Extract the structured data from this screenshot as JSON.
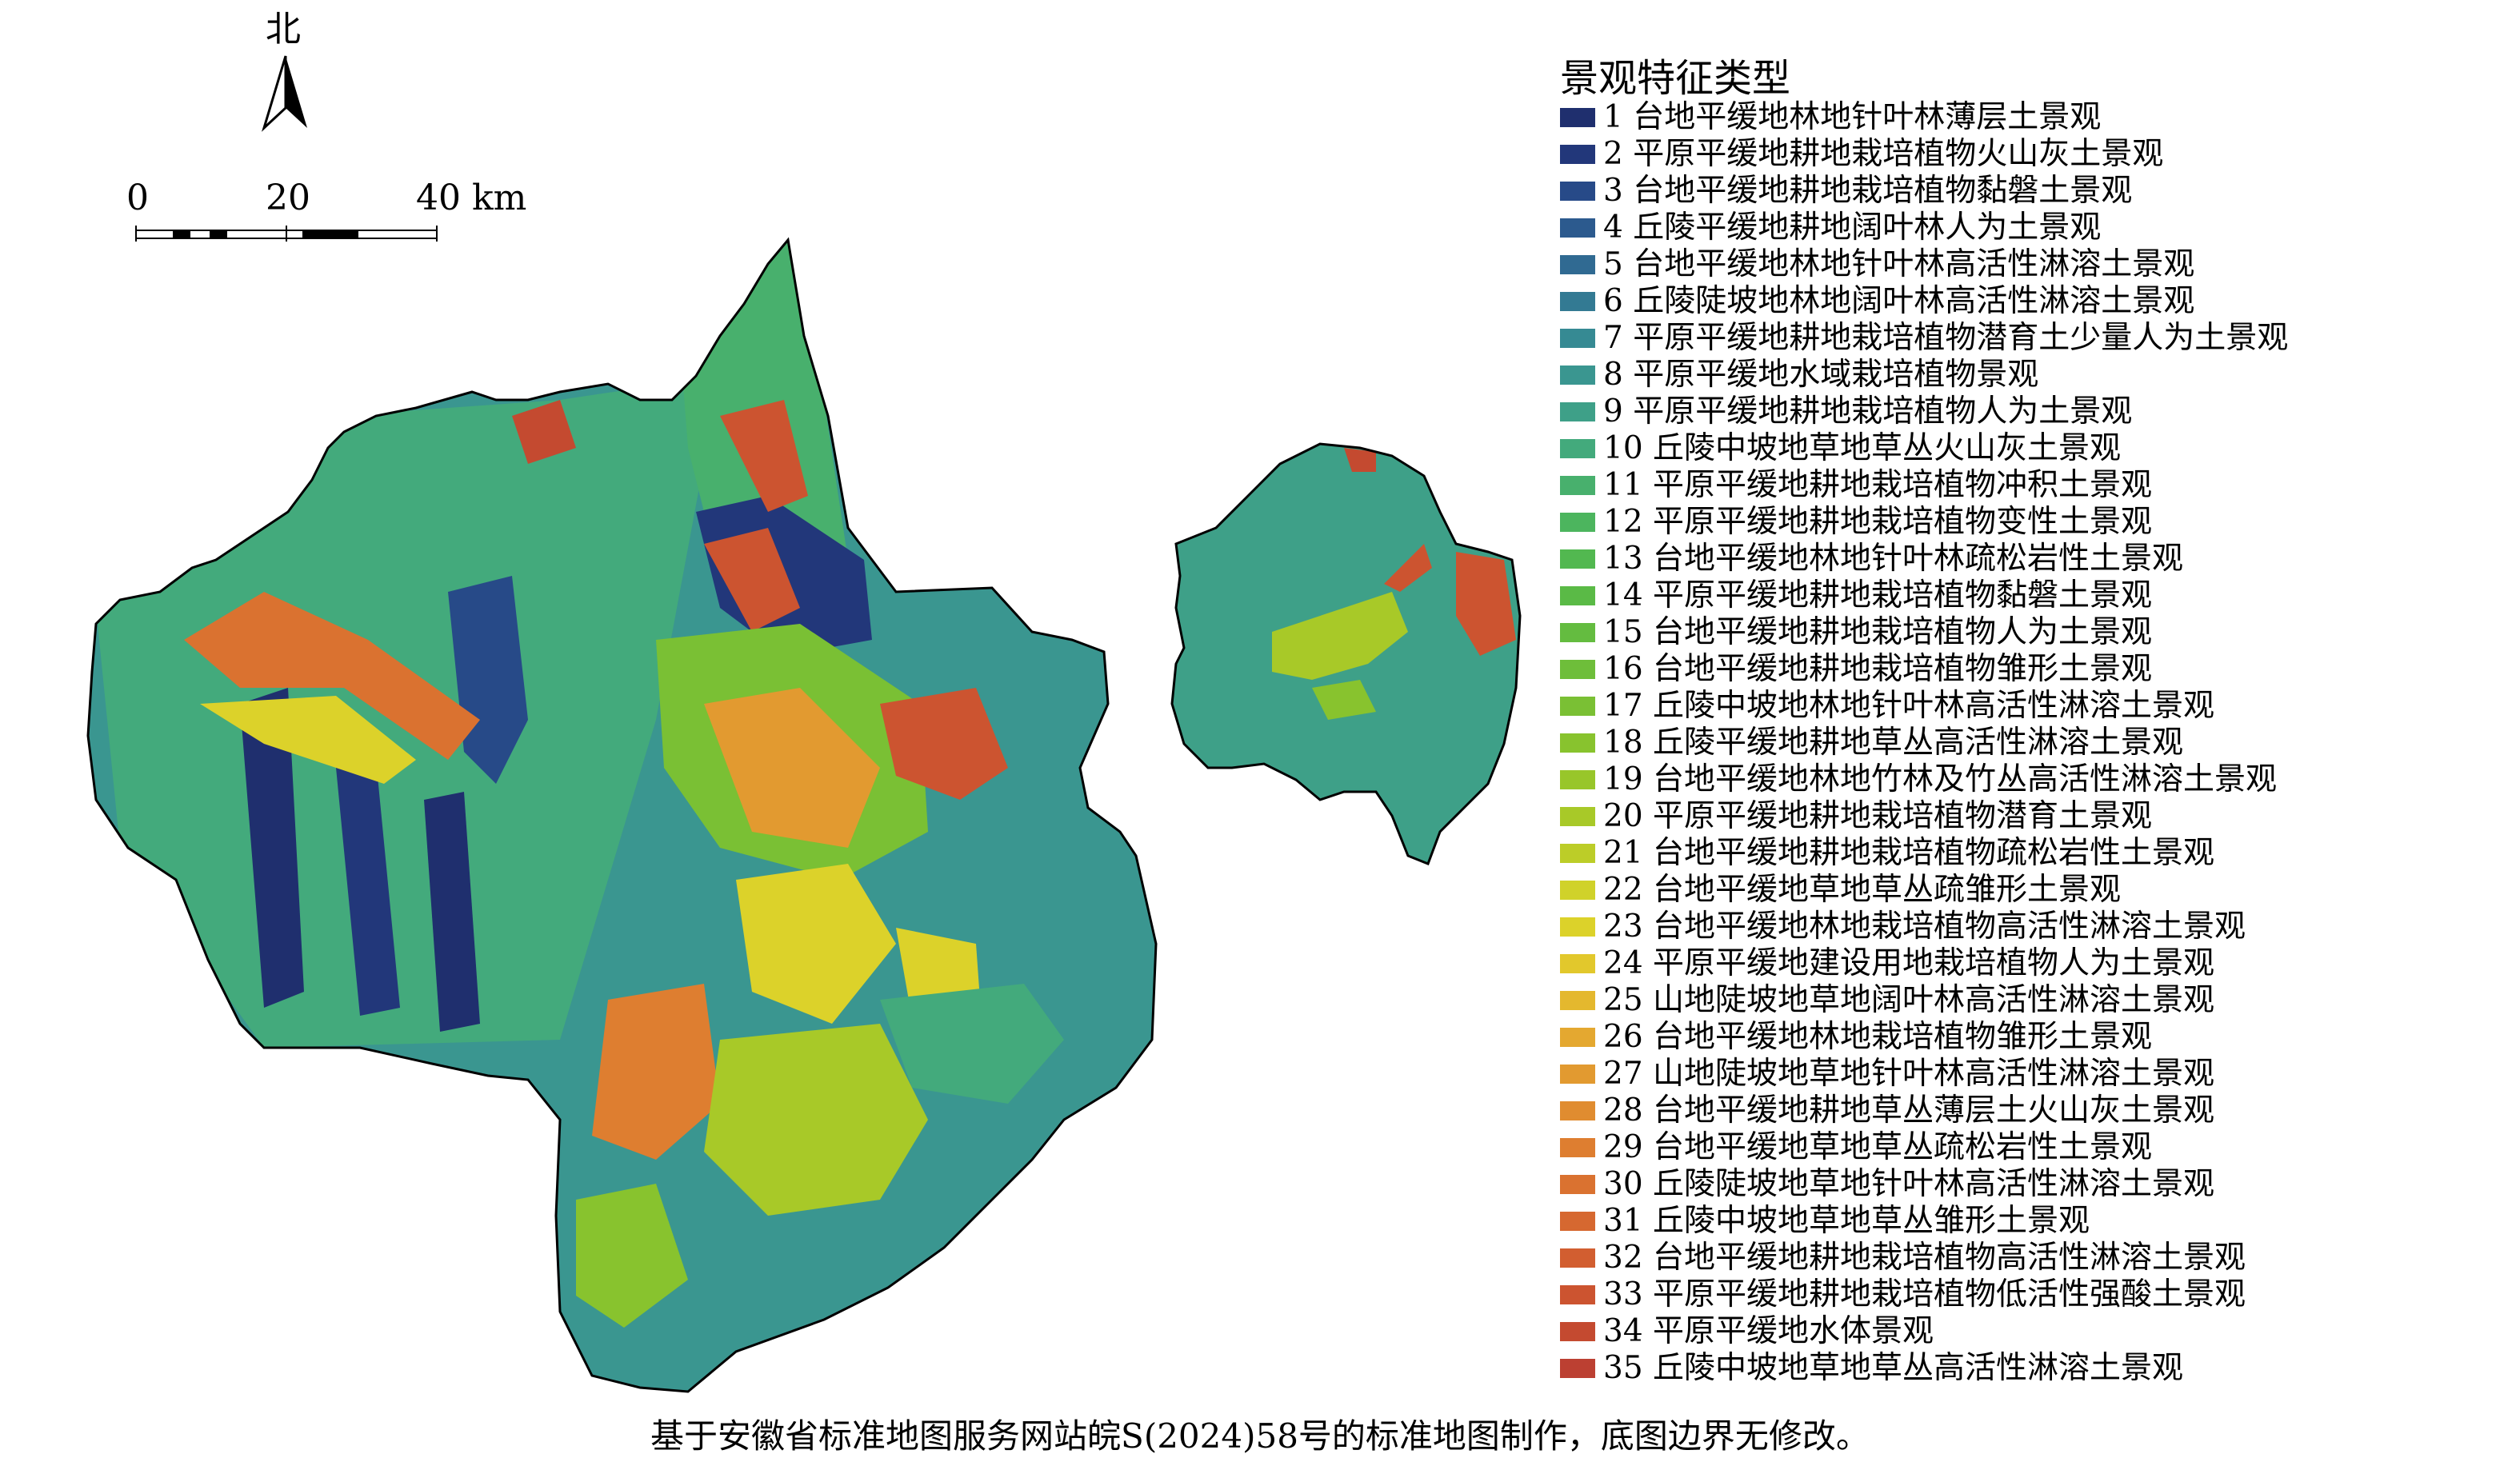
{
  "north_arrow": {
    "label": "北",
    "icon": "north-arrow-icon"
  },
  "scale_bar": {
    "labels": [
      "0",
      "20",
      "40 km"
    ]
  },
  "legend": {
    "title": "景观特征类型",
    "items": [
      {
        "label": "1 台地平缓地林地针叶林薄层土景观",
        "color": "#1f2f6e"
      },
      {
        "label": "2 平原平缓地耕地栽培植物火山灰土景观",
        "color": "#22377a"
      },
      {
        "label": "3 台地平缓地耕地栽培植物黏磐土景观",
        "color": "#274a88"
      },
      {
        "label": "4 丘陵平缓地耕地阔叶林人为土景观",
        "color": "#2c5a8e"
      },
      {
        "label": "5 台地平缓地林地针叶林高活性淋溶土景观",
        "color": "#306a92"
      },
      {
        "label": "6 丘陵陡坡地林地阔叶林高活性淋溶土景观",
        "color": "#337a93"
      },
      {
        "label": "7 平原平缓地耕地栽培植物潜育土少量人为土景观",
        "color": "#368a93"
      },
      {
        "label": "8 平原平缓地水域栽培植物景观",
        "color": "#3a9690"
      },
      {
        "label": "9 平原平缓地耕地栽培植物人为土景观",
        "color": "#3ea088"
      },
      {
        "label": "10 丘陵中坡地草地草丛火山灰土景观",
        "color": "#43aa7c"
      },
      {
        "label": "11 平原平缓地耕地栽培植物冲积土景观",
        "color": "#48b06d"
      },
      {
        "label": "12 平原平缓地耕地栽培植物变性土景观",
        "color": "#4cb55e"
      },
      {
        "label": "13 台地平缓地林地针叶林疏松岩性土景观",
        "color": "#52b850"
      },
      {
        "label": "14 平原平缓地耕地栽培植物黏磐土景观",
        "color": "#5aba46"
      },
      {
        "label": "15 台地平缓地耕地栽培植物人为土景观",
        "color": "#64bc40"
      },
      {
        "label": "16 台地平缓地耕地栽培植物雏形土景观",
        "color": "#6ebe3a"
      },
      {
        "label": "17 丘陵中坡地林地针叶林高活性淋溶土景观",
        "color": "#7ac034"
      },
      {
        "label": "18 丘陵平缓地耕地草丛高活性淋溶土景观",
        "color": "#88c32e"
      },
      {
        "label": "19 台地平缓地林地竹林及竹丛高活性淋溶土景观",
        "color": "#98c62a"
      },
      {
        "label": "20 平原平缓地耕地栽培植物潜育土景观",
        "color": "#a8c928"
      },
      {
        "label": "21 台地平缓地耕地栽培植物疏松岩性土景观",
        "color": "#bccd28"
      },
      {
        "label": "22 台地平缓地草地草丛疏雏形土景观",
        "color": "#d0d22a"
      },
      {
        "label": "23 台地平缓地林地栽培植物高活性淋溶土景观",
        "color": "#dcd22a"
      },
      {
        "label": "24 平原平缓地建设用地栽培植物人为土景观",
        "color": "#e2c82c"
      },
      {
        "label": "25 山地陡坡地草地阔叶林高活性淋溶土景观",
        "color": "#e4b82e"
      },
      {
        "label": "26 台地平缓地林地栽培植物雏形土景观",
        "color": "#e4a830"
      },
      {
        "label": "27 山地陡坡地草地针叶林高活性淋溶土景观",
        "color": "#e29a30"
      },
      {
        "label": "28 台地平缓地耕地草丛薄层土火山灰土景观",
        "color": "#e08c30"
      },
      {
        "label": "29 台地平缓地草地草丛疏松岩性土景观",
        "color": "#de7e30"
      },
      {
        "label": "30 丘陵陡坡地草地针叶林高活性淋溶土景观",
        "color": "#da7230"
      },
      {
        "label": "31 丘陵中坡地草地草丛雏形土景观",
        "color": "#d66830"
      },
      {
        "label": "32 台地平缓地耕地栽培植物高活性淋溶土景观",
        "color": "#d25e30"
      },
      {
        "label": "33 平原平缓地耕地栽培植物低活性强酸土景观",
        "color": "#cc5430"
      },
      {
        "label": "34 平原平缓地水体景观",
        "color": "#c44a30"
      },
      {
        "label": "35 丘陵中坡地草地草丛高活性淋溶土景观",
        "color": "#bc4032"
      }
    ]
  },
  "footer_note": "基于安徽省标准地图服务网站皖S(2024)58号的标准地图制作，底图边界无修改。"
}
